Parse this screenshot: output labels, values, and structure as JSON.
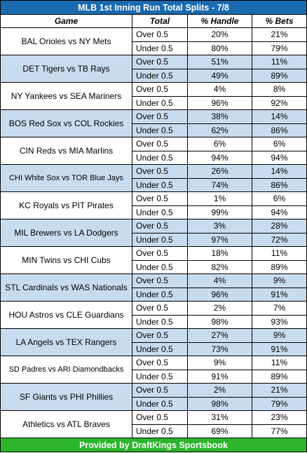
{
  "title": "MLB 1st Inning Run Total Splits - 7/8",
  "headers": {
    "game": "Game",
    "total": "Total",
    "handle": "% Handle",
    "bets": "% Bets"
  },
  "footer": "Provided by DraftKings Sportsbook",
  "colors": {
    "title_bg": "#1a6ab0",
    "row_shade": "#c8dcf0",
    "footer_bg": "#2bb52b"
  },
  "games": [
    {
      "game": "BAL Orioles vs NY Mets",
      "shaded": false,
      "rows": [
        {
          "total": "Over 0.5",
          "handle": "20%",
          "bets": "21%"
        },
        {
          "total": "Under 0.5",
          "handle": "80%",
          "bets": "79%"
        }
      ]
    },
    {
      "game": "DET Tigers vs TB Rays",
      "shaded": true,
      "rows": [
        {
          "total": "Over 0.5",
          "handle": "51%",
          "bets": "11%"
        },
        {
          "total": "Under 0.5",
          "handle": "49%",
          "bets": "89%"
        }
      ]
    },
    {
      "game": "NY Yankees vs SEA Mariners",
      "shaded": false,
      "rows": [
        {
          "total": "Over 0.5",
          "handle": "4%",
          "bets": "8%"
        },
        {
          "total": "Under 0.5",
          "handle": "96%",
          "bets": "92%"
        }
      ]
    },
    {
      "game": "BOS Red Sox vs COL Rockies",
      "shaded": true,
      "rows": [
        {
          "total": "Over 0.5",
          "handle": "38%",
          "bets": "14%"
        },
        {
          "total": "Under 0.5",
          "handle": "62%",
          "bets": "86%"
        }
      ]
    },
    {
      "game": "CIN Reds vs MIA Marlins",
      "shaded": false,
      "rows": [
        {
          "total": "Over 0.5",
          "handle": "6%",
          "bets": "6%"
        },
        {
          "total": "Under 0.5",
          "handle": "94%",
          "bets": "94%"
        }
      ]
    },
    {
      "game": "CHI White Sox vs TOR Blue Jays",
      "shaded": true,
      "small": true,
      "rows": [
        {
          "total": "Over 0.5",
          "handle": "26%",
          "bets": "14%"
        },
        {
          "total": "Under 0.5",
          "handle": "74%",
          "bets": "86%"
        }
      ]
    },
    {
      "game": "KC Royals vs PIT Pirates",
      "shaded": false,
      "rows": [
        {
          "total": "Over 0.5",
          "handle": "1%",
          "bets": "6%"
        },
        {
          "total": "Under 0.5",
          "handle": "99%",
          "bets": "94%"
        }
      ]
    },
    {
      "game": "MIL Brewers vs LA Dodgers",
      "shaded": true,
      "rows": [
        {
          "total": "Over 0.5",
          "handle": "3%",
          "bets": "28%"
        },
        {
          "total": "Under 0.5",
          "handle": "97%",
          "bets": "72%"
        }
      ]
    },
    {
      "game": "MIN Twins vs CHI Cubs",
      "shaded": false,
      "rows": [
        {
          "total": "Over 0.5",
          "handle": "18%",
          "bets": "11%"
        },
        {
          "total": "Under 0.5",
          "handle": "82%",
          "bets": "89%"
        }
      ]
    },
    {
      "game": "STL Cardinals vs WAS Nationals",
      "shaded": true,
      "rows": [
        {
          "total": "Over 0.5",
          "handle": "4%",
          "bets": "9%"
        },
        {
          "total": "Under 0.5",
          "handle": "96%",
          "bets": "91%"
        }
      ]
    },
    {
      "game": "HOU Astros vs CLE Guardians",
      "shaded": false,
      "rows": [
        {
          "total": "Over 0.5",
          "handle": "2%",
          "bets": "7%"
        },
        {
          "total": "Under 0.5",
          "handle": "98%",
          "bets": "93%"
        }
      ]
    },
    {
      "game": "LA Angels vs TEX Rangers",
      "shaded": true,
      "rows": [
        {
          "total": "Over 0.5",
          "handle": "27%",
          "bets": "9%"
        },
        {
          "total": "Under 0.5",
          "handle": "73%",
          "bets": "91%"
        }
      ]
    },
    {
      "game": "SD Padres vs ARI Diamondbacks",
      "shaded": false,
      "small": true,
      "rows": [
        {
          "total": "Over 0.5",
          "handle": "9%",
          "bets": "11%"
        },
        {
          "total": "Under 0.5",
          "handle": "91%",
          "bets": "89%"
        }
      ]
    },
    {
      "game": "SF Giants vs PHI Phillies",
      "shaded": true,
      "rows": [
        {
          "total": "Over 0.5",
          "handle": "2%",
          "bets": "21%"
        },
        {
          "total": "Under 0.5",
          "handle": "98%",
          "bets": "79%"
        }
      ]
    },
    {
      "game": "Athletics vs ATL Braves",
      "shaded": false,
      "rows": [
        {
          "total": "Over 0.5",
          "handle": "31%",
          "bets": "23%"
        },
        {
          "total": "Under 0.5",
          "handle": "69%",
          "bets": "77%"
        }
      ]
    }
  ]
}
